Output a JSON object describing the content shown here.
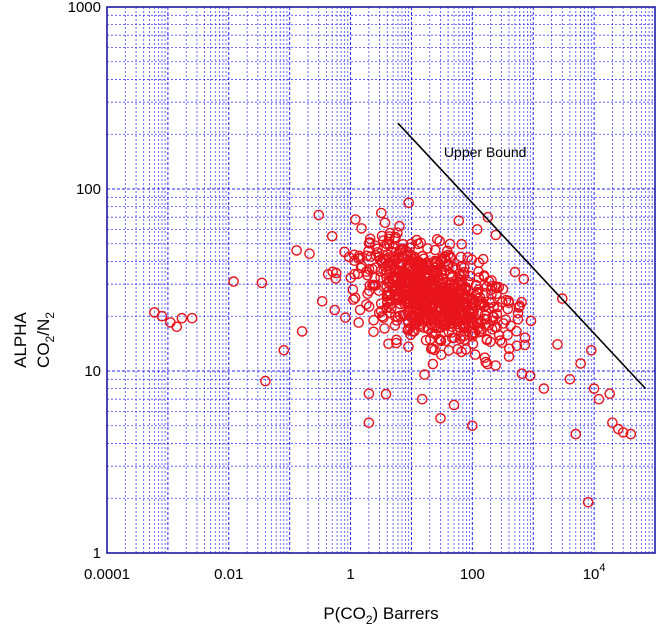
{
  "chart_data": {
    "type": "scatter",
    "title": "",
    "xscale": "log",
    "yscale": "log",
    "xlim": [
      0.0001,
      100000
    ],
    "ylim": [
      1,
      1000
    ],
    "grid": true,
    "legend": "none",
    "xlabel": {
      "pre": "P(CO",
      "sub": "2",
      "post": ") Barrers"
    },
    "ylabel": {
      "line1": "ALPHA",
      "line2_parts": [
        [
          "CO",
          false
        ],
        [
          "2",
          true
        ],
        [
          "/N",
          false
        ],
        [
          "2",
          true
        ]
      ]
    },
    "x_ticks": [
      {
        "value": 0.0001,
        "label": "0.0001"
      },
      {
        "value": 0.01,
        "label": "0.01"
      },
      {
        "value": 1,
        "label": "1"
      },
      {
        "value": 100,
        "label": "100"
      },
      {
        "value": 10000,
        "base": "10",
        "exp": "4"
      }
    ],
    "y_ticks": [
      {
        "value": 1,
        "label": "1"
      },
      {
        "value": 10,
        "label": "10"
      },
      {
        "value": 100,
        "label": "100"
      },
      {
        "value": 1000,
        "label": "1000"
      }
    ],
    "colors": {
      "points": "#e8141c",
      "grid": "#1a1aff",
      "axis": "#1a1aa6",
      "line": "#000000"
    },
    "upper_bound": {
      "label": "Upper Bound",
      "x": [
        6,
        70000
      ],
      "y": [
        230,
        8
      ]
    },
    "series": [
      {
        "marker": "circle-open",
        "cluster_seed": 7,
        "cluster": {
          "n": 780,
          "center_log_x": 1.35,
          "center_log_y": 1.42,
          "spread_log_x": 0.62,
          "spread_log_y": 0.15,
          "corr": -0.45,
          "x_range": [
            0.2,
            30000
          ],
          "y_range": [
            4.5,
            78
          ]
        },
        "points": [
          [
            0.0006,
            21
          ],
          [
            0.0008,
            20
          ],
          [
            0.0011,
            18.5
          ],
          [
            0.0014,
            17.5
          ],
          [
            0.0017,
            19.5
          ],
          [
            0.0025,
            19.5
          ],
          [
            0.012,
            31
          ],
          [
            0.035,
            30.5
          ],
          [
            0.04,
            8.8
          ],
          [
            0.08,
            13
          ],
          [
            0.13,
            46
          ],
          [
            0.16,
            16.5
          ],
          [
            0.3,
            72
          ],
          [
            0.5,
            55
          ],
          [
            1.2,
            68
          ],
          [
            2,
            5.2
          ],
          [
            2,
            7.5
          ],
          [
            9,
            84
          ],
          [
            60,
            67
          ],
          [
            120,
            60
          ],
          [
            180,
            70
          ],
          [
            700,
            32
          ],
          [
            1500,
            8
          ],
          [
            3000,
            25
          ],
          [
            4000,
            9
          ],
          [
            5000,
            4.5
          ],
          [
            8000,
            1.9
          ],
          [
            10000,
            8
          ],
          [
            12000,
            7
          ],
          [
            18000,
            7.5
          ],
          [
            20000,
            5.2
          ],
          [
            25000,
            4.8
          ],
          [
            30000,
            4.6
          ],
          [
            40000,
            4.5
          ],
          [
            9000,
            13
          ],
          [
            6000,
            11
          ],
          [
            2500,
            14
          ],
          [
            400,
            12
          ],
          [
            100,
            5
          ],
          [
            50,
            6.5
          ],
          [
            30,
            5.5
          ],
          [
            15,
            7
          ]
        ]
      }
    ]
  }
}
